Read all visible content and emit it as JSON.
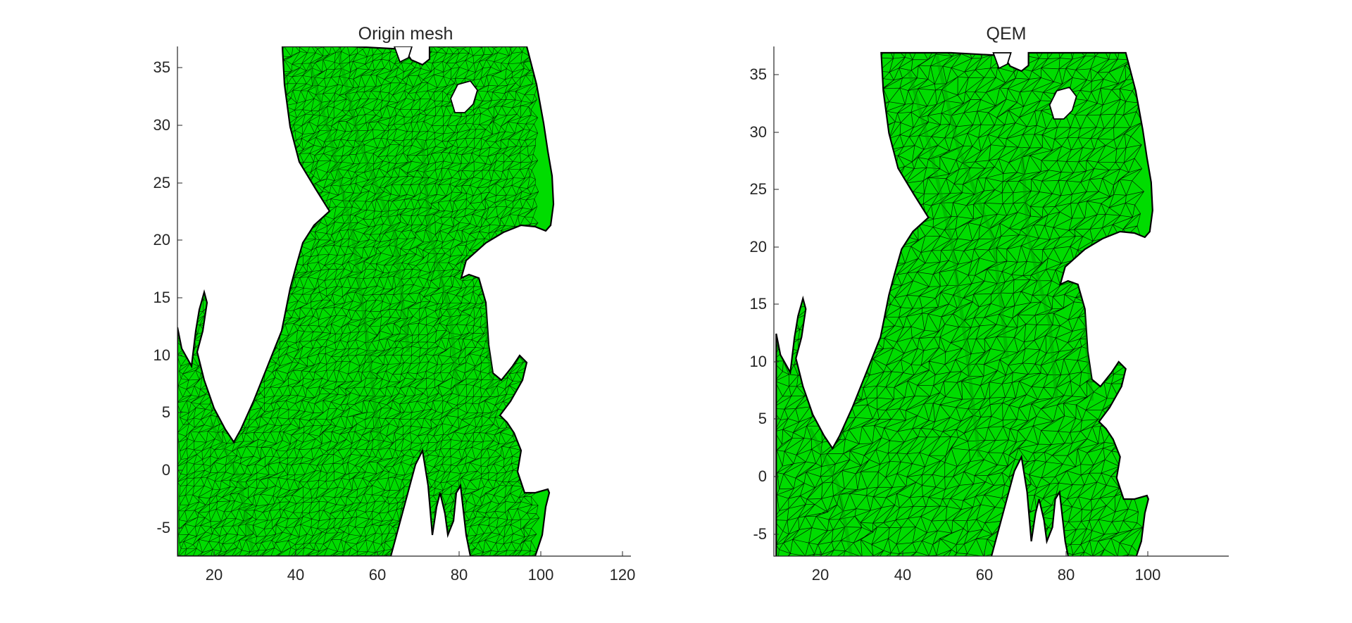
{
  "figure": {
    "panels": [
      {
        "title": "Origin mesh",
        "xticks": [
          "20",
          "40",
          "60",
          "80",
          "100",
          "120"
        ],
        "yticks": [
          "35",
          "30",
          "25",
          "20",
          "15",
          "10",
          "5",
          "0",
          "-5"
        ],
        "mesh_style": "dense"
      },
      {
        "title": "QEM",
        "xticks": [
          "20",
          "40",
          "60",
          "80",
          "100"
        ],
        "yticks": [
          "35",
          "30",
          "25",
          "20",
          "15",
          "10",
          "5",
          "0",
          "-5"
        ],
        "mesh_style": "simplified"
      }
    ],
    "colors": {
      "face": "#00dc00",
      "face_dark": "#009a00",
      "edge": "#000000",
      "axis": "#262626"
    }
  }
}
